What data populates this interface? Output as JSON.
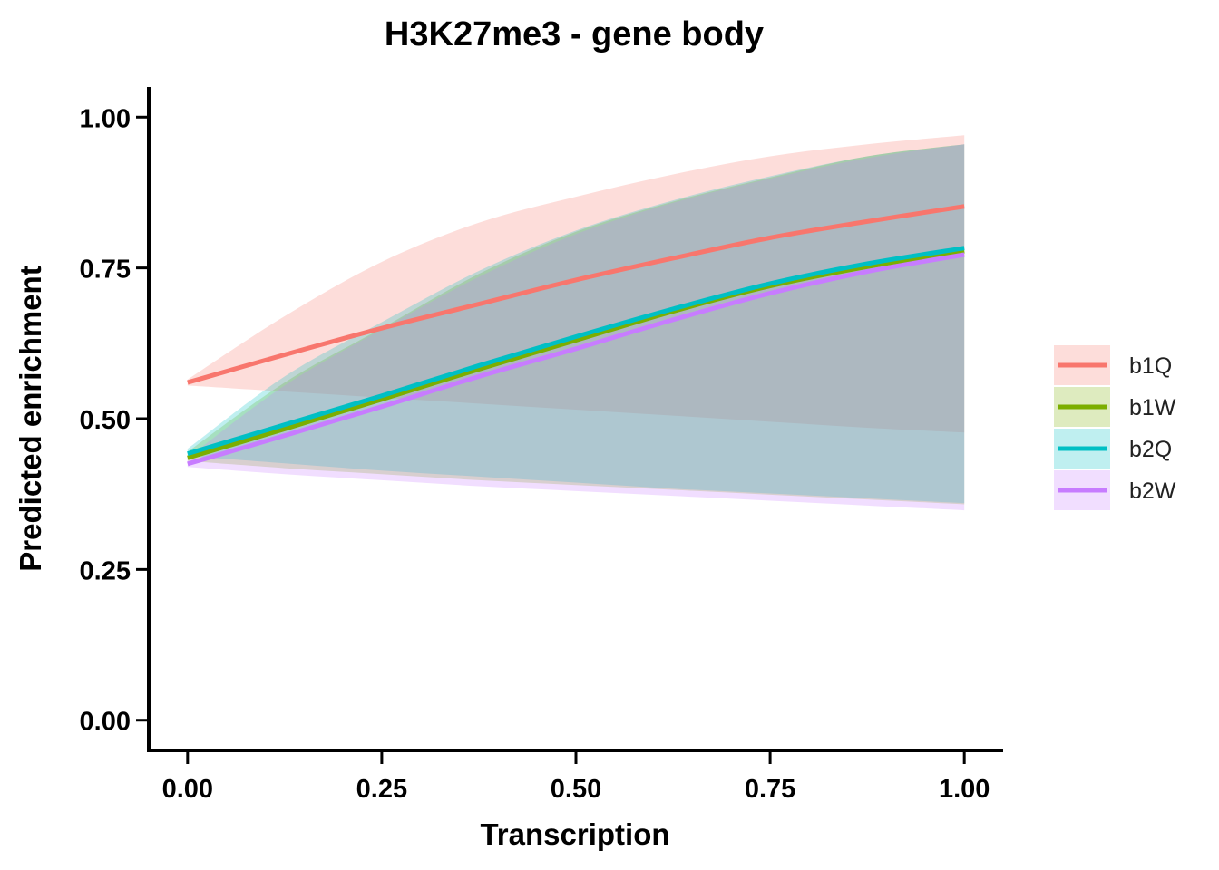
{
  "chart_data": {
    "type": "line",
    "title": "H3K27me3 - gene body",
    "xlabel": "Transcription",
    "ylabel": "Predicted enrichment",
    "xlim": [
      -0.05,
      1.05
    ],
    "ylim": [
      -0.05,
      1.05
    ],
    "xticks": [
      0,
      0.25,
      0.5,
      0.75,
      1
    ],
    "xtick_labels": [
      "0.00",
      "0.25",
      "0.50",
      "0.75",
      "1.00"
    ],
    "yticks": [
      0,
      0.25,
      0.5,
      0.75,
      1
    ],
    "ytick_labels": [
      "0.00",
      "0.25",
      "0.50",
      "0.75",
      "1.00"
    ],
    "grid": false,
    "legend_position": "right",
    "x": [
      0,
      0.125,
      0.25,
      0.375,
      0.5,
      0.625,
      0.75,
      0.875,
      1
    ],
    "series": [
      {
        "name": "b1Q",
        "color": "#F8766D",
        "values": [
          0.56,
          0.606,
          0.65,
          0.69,
          0.73,
          0.766,
          0.8,
          0.827,
          0.852
        ],
        "lower": [
          0.555,
          0.545,
          0.535,
          0.525,
          0.515,
          0.505,
          0.495,
          0.485,
          0.477
        ],
        "upper": [
          0.565,
          0.67,
          0.76,
          0.825,
          0.868,
          0.905,
          0.935,
          0.955,
          0.97
        ]
      },
      {
        "name": "b1W",
        "color": "#7CAE00",
        "values": [
          0.435,
          0.483,
          0.532,
          0.582,
          0.63,
          0.678,
          0.72,
          0.752,
          0.778
        ],
        "lower": [
          0.43,
          0.418,
          0.408,
          0.398,
          0.39,
          0.382,
          0.374,
          0.366,
          0.358
        ],
        "upper": [
          0.445,
          0.56,
          0.65,
          0.74,
          0.81,
          0.86,
          0.9,
          0.935,
          0.955
        ]
      },
      {
        "name": "b2Q",
        "color": "#00BFC4",
        "values": [
          0.442,
          0.49,
          0.538,
          0.588,
          0.636,
          0.682,
          0.724,
          0.757,
          0.783
        ],
        "lower": [
          0.438,
          0.426,
          0.414,
          0.404,
          0.394,
          0.384,
          0.376,
          0.368,
          0.36
        ],
        "upper": [
          0.45,
          0.57,
          0.66,
          0.745,
          0.812,
          0.862,
          0.902,
          0.935,
          0.955
        ]
      },
      {
        "name": "b2W",
        "color": "#C77CFF",
        "values": [
          0.425,
          0.472,
          0.52,
          0.57,
          0.616,
          0.664,
          0.708,
          0.744,
          0.772
        ],
        "lower": [
          0.42,
          0.408,
          0.398,
          0.388,
          0.38,
          0.372,
          0.364,
          0.356,
          0.348
        ],
        "upper": [
          0.435,
          0.555,
          0.648,
          0.735,
          0.806,
          0.858,
          0.898,
          0.932,
          0.955
        ]
      }
    ]
  }
}
